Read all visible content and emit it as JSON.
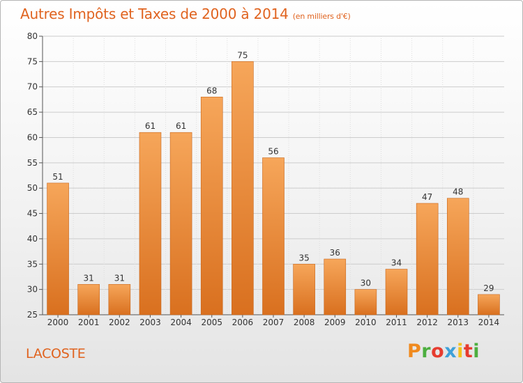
{
  "header": {
    "title": "Autres Impôts et Taxes de 2000 à 2014",
    "subtitle": "(en milliers d'€)"
  },
  "footer": {
    "commune": "LACOSTE",
    "logo": "Proxiti",
    "logo_colors": [
      "#f08a1e",
      "#4cae3f",
      "#e63c2f",
      "#3ea0d8",
      "#f4c21b",
      "#e63c2f",
      "#4cae3f"
    ]
  },
  "colors": {
    "bar_top": "#f6a65a",
    "bar_bottom": "#d9701f",
    "axis": "#555555",
    "grid": "#cccccc",
    "title": "#e0631f"
  },
  "chart_data": {
    "type": "bar",
    "title": "Autres Impôts et Taxes de 2000 à 2014",
    "subtitle": "(en milliers d'€)",
    "categories": [
      "2000",
      "2001",
      "2002",
      "2003",
      "2004",
      "2005",
      "2006",
      "2007",
      "2008",
      "2009",
      "2010",
      "2011",
      "2012",
      "2013",
      "2014"
    ],
    "values": [
      51,
      31,
      31,
      61,
      61,
      68,
      75,
      56,
      35,
      36,
      30,
      34,
      47,
      48,
      29
    ],
    "ylim": [
      25,
      80
    ],
    "yticks": [
      25,
      30,
      35,
      40,
      45,
      50,
      55,
      60,
      65,
      70,
      75,
      80
    ],
    "grid": true,
    "data_labels": true
  }
}
